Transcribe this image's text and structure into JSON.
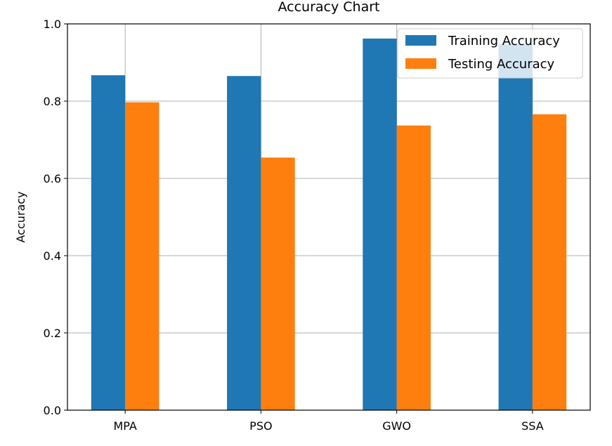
{
  "chart_data": {
    "type": "bar",
    "title": "Accuracy Chart",
    "xlabel": "",
    "ylabel": "Accuracy",
    "categories": [
      "MPA",
      "PSO",
      "GWO",
      "SSA"
    ],
    "series": [
      {
        "name": "Training Accuracy",
        "color": "#1f77b4",
        "values": [
          0.867,
          0.865,
          0.962,
          0.947
        ]
      },
      {
        "name": "Testing Accuracy",
        "color": "#ff7f0e",
        "values": [
          0.797,
          0.654,
          0.737,
          0.766
        ]
      }
    ],
    "ylim": [
      0,
      1.0
    ],
    "yticks": [
      "0.0",
      "0.2",
      "0.4",
      "0.6",
      "0.8",
      "1.0"
    ],
    "grid": true,
    "legend_position": "top-right"
  }
}
